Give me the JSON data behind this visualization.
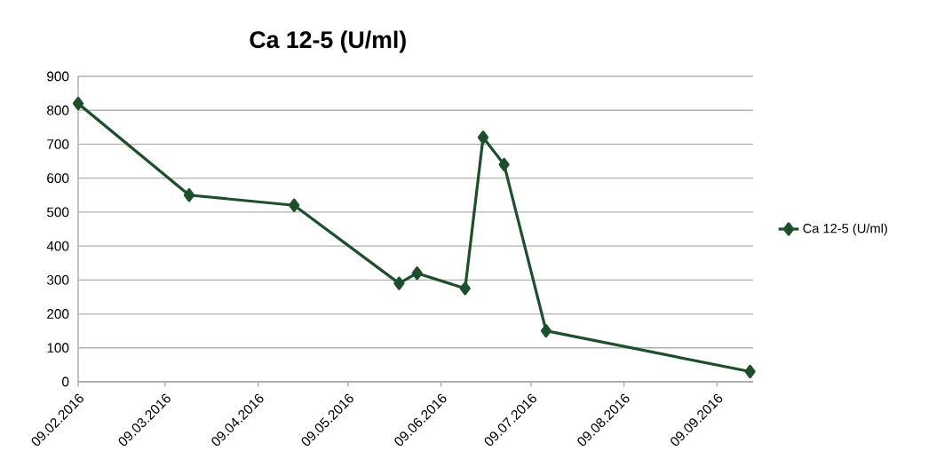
{
  "chart_data": {
    "type": "line",
    "title": "Ca 12-5 (U/ml)",
    "x": [
      "2016-02-09",
      "2016-03-17",
      "2016-04-21",
      "2016-05-26",
      "2016-06-01",
      "2016-06-17",
      "2016-06-23",
      "2016-06-30",
      "2016-07-14",
      "2016-09-20"
    ],
    "series": [
      {
        "name": "Ca 12-5 (U/ml)",
        "color": "#1c4f2a",
        "values": [
          820,
          550,
          520,
          290,
          320,
          275,
          720,
          640,
          150,
          30
        ]
      }
    ],
    "xlim": [
      "2016-02-09",
      "2016-09-21"
    ],
    "xticks": [
      {
        "value": "2016-02-09",
        "label": "09.02.2016"
      },
      {
        "value": "2016-03-09",
        "label": "09.03.2016"
      },
      {
        "value": "2016-04-09",
        "label": "09.04.2016"
      },
      {
        "value": "2016-05-09",
        "label": "09.05.2016"
      },
      {
        "value": "2016-06-09",
        "label": "09.06.2016"
      },
      {
        "value": "2016-07-09",
        "label": "09.07.2016"
      },
      {
        "value": "2016-08-09",
        "label": "09.08.2016"
      },
      {
        "value": "2016-09-09",
        "label": "09.09.2016"
      }
    ],
    "ylim": [
      0,
      900
    ],
    "yticks": [
      0,
      100,
      200,
      300,
      400,
      500,
      600,
      700,
      800,
      900
    ],
    "grid": "y",
    "legend": "right",
    "marker": "diamond",
    "line_style": "solid"
  }
}
